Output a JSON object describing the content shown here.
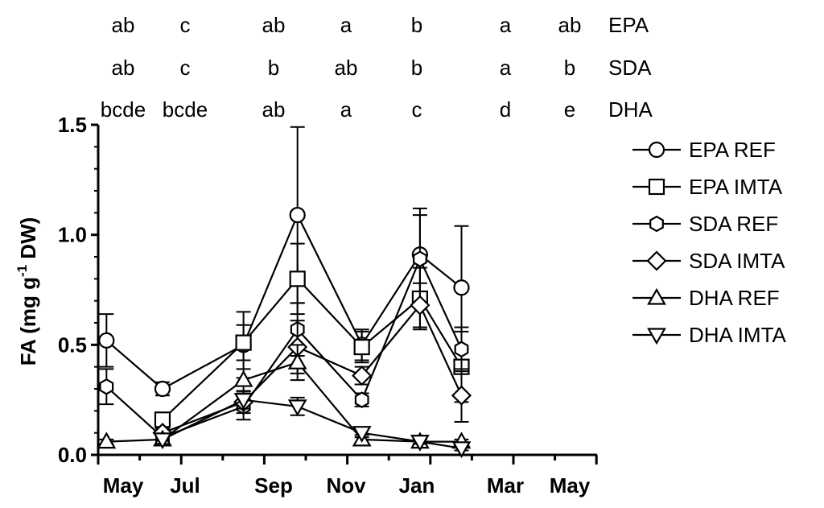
{
  "chart_data": {
    "type": "line",
    "ylabel": "FA (mg g",
    "ylabel_sup": "-1",
    "ylabel_end": " DW)",
    "ylim": [
      0,
      1.5
    ],
    "yticks": [
      {
        "value": 0.0,
        "label": "0.0"
      },
      {
        "value": 0.5,
        "label": "0.5"
      },
      {
        "value": 1.0,
        "label": "1.0"
      },
      {
        "value": 1.5,
        "label": "1.5"
      }
    ],
    "x_categories": [
      "May",
      "Jul",
      "Sep",
      "Nov",
      "Jan",
      "Mar",
      "May"
    ],
    "letter_rows": [
      {
        "name": "EPA",
        "letters": [
          "ab",
          "c",
          "ab",
          "a",
          "b",
          "a",
          "ab"
        ]
      },
      {
        "name": "SDA",
        "letters": [
          "ab",
          "c",
          "b",
          "ab",
          "b",
          "a",
          "b"
        ]
      },
      {
        "name": "DHA",
        "letters": [
          "bcde",
          "bcde",
          "ab",
          "a",
          "c",
          "d",
          "e"
        ]
      }
    ],
    "series": [
      {
        "name": "EPA REF",
        "marker": "circle",
        "x": [
          0.2,
          1.55,
          3.5,
          4.8,
          6.35,
          7.75,
          8.75
        ],
        "y": [
          0.52,
          0.3,
          0.5,
          1.09,
          0.5,
          0.91,
          0.76
        ],
        "err": [
          0.12,
          0.03,
          0.15,
          0.4,
          0.07,
          0.21,
          0.28
        ]
      },
      {
        "name": "EPA IMTA",
        "marker": "square",
        "x": [
          1.55,
          3.5,
          4.8,
          6.35,
          7.75,
          8.75
        ],
        "y": [
          0.16,
          0.51,
          0.8,
          0.49,
          0.71,
          0.4
        ],
        "err": [
          0.03,
          0.08,
          0.16,
          0.07,
          0.14,
          0.16
        ]
      },
      {
        "name": "SDA REF",
        "marker": "hexagon",
        "x": [
          0.2,
          1.55,
          3.5,
          4.8,
          6.35,
          7.75,
          8.75
        ],
        "y": [
          0.31,
          0.08,
          0.22,
          0.57,
          0.25,
          0.89,
          0.48
        ],
        "err": [
          0.08,
          0.02,
          0.06,
          0.12,
          0.03,
          0.2,
          0.1
        ]
      },
      {
        "name": "SDA IMTA",
        "marker": "diamond",
        "x": [
          1.55,
          3.5,
          4.8,
          6.35,
          7.75,
          8.75
        ],
        "y": [
          0.1,
          0.24,
          0.49,
          0.36,
          0.68,
          0.27
        ],
        "err": [
          0.02,
          0.05,
          0.12,
          0.04,
          0.1,
          0.12
        ]
      },
      {
        "name": "DHA REF",
        "marker": "triangle-up",
        "x": [
          0.2,
          1.55,
          3.5,
          4.8,
          6.35,
          7.75,
          8.75
        ],
        "y": [
          0.06,
          0.07,
          0.34,
          0.42,
          0.07,
          0.06,
          0.06
        ],
        "err": [
          0.01,
          0.02,
          0.05,
          0.08,
          0.02,
          0.01,
          0.01
        ]
      },
      {
        "name": "DHA IMTA",
        "marker": "triangle-down",
        "x": [
          1.55,
          3.5,
          4.8,
          6.35,
          7.75,
          8.75
        ],
        "y": [
          0.07,
          0.25,
          0.22,
          0.1,
          0.06,
          0.03
        ],
        "err": [
          0.02,
          0.04,
          0.04,
          0.02,
          0.01,
          0.01
        ]
      }
    ]
  }
}
